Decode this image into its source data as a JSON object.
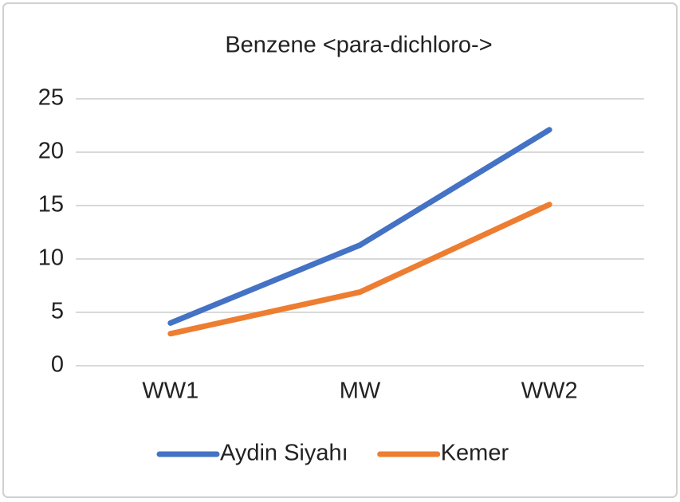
{
  "chart_data": {
    "type": "line",
    "title": "Benzene <para-dichloro->",
    "categories": [
      "WW1",
      "MW",
      "WW2"
    ],
    "series": [
      {
        "name": "Aydin Siyahı",
        "color": "#4472c4",
        "values": [
          4,
          11.3,
          22.1
        ]
      },
      {
        "name": "Kemer",
        "color": "#ed7d31",
        "values": [
          3,
          6.9,
          15.1
        ]
      }
    ],
    "ylim": [
      0,
      25
    ],
    "yticks": [
      0,
      5,
      10,
      15,
      20,
      25
    ],
    "grid": true,
    "legend": "bottom"
  }
}
